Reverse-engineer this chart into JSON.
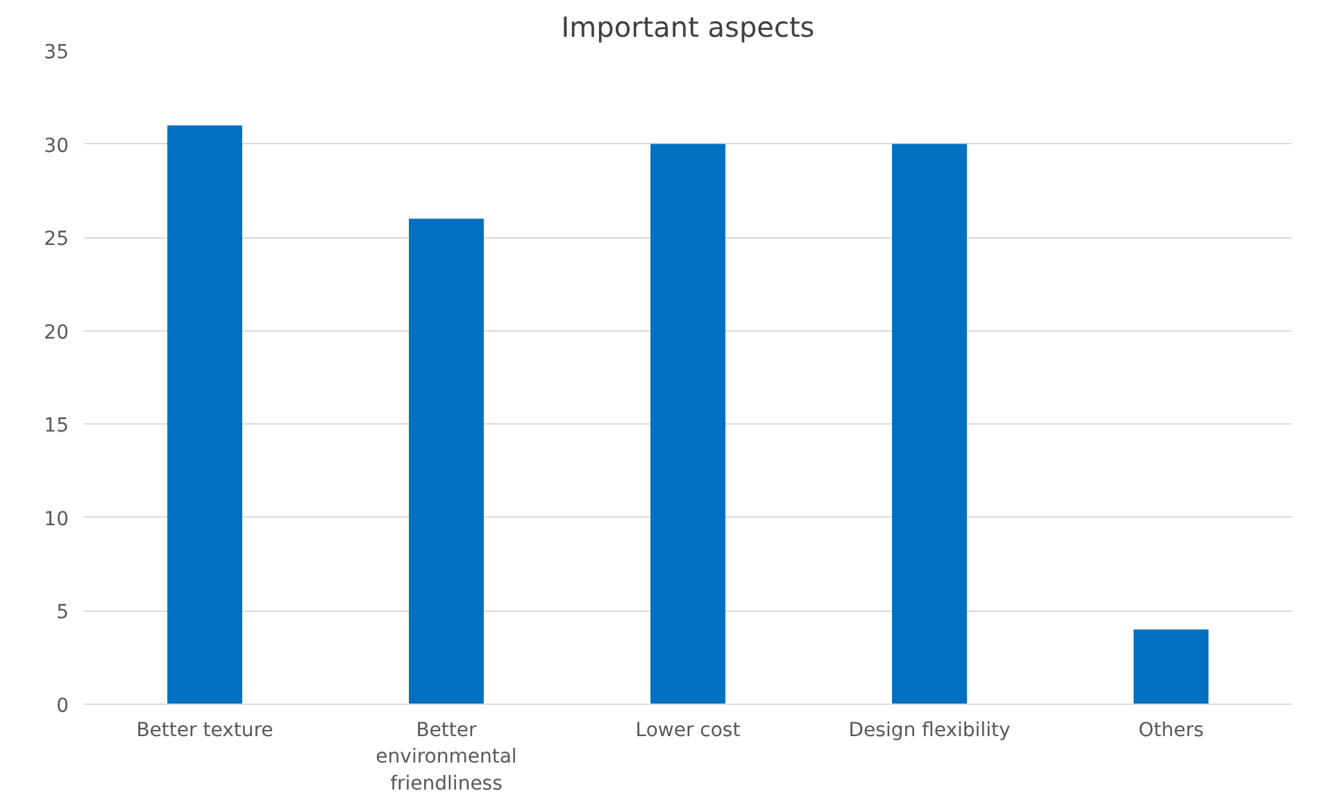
{
  "chart_data": {
    "type": "bar",
    "title": "Important aspects",
    "categories": [
      "Better texture",
      "Better environmental friendliness",
      "Lower cost",
      "Design flexibility",
      "Others"
    ],
    "values": [
      31,
      26,
      30,
      30,
      4
    ],
    "color": "#0070c0",
    "ylim": [
      0,
      35
    ],
    "yticks": [
      0,
      5,
      10,
      15,
      20,
      25,
      30,
      35
    ],
    "grid": "y"
  }
}
